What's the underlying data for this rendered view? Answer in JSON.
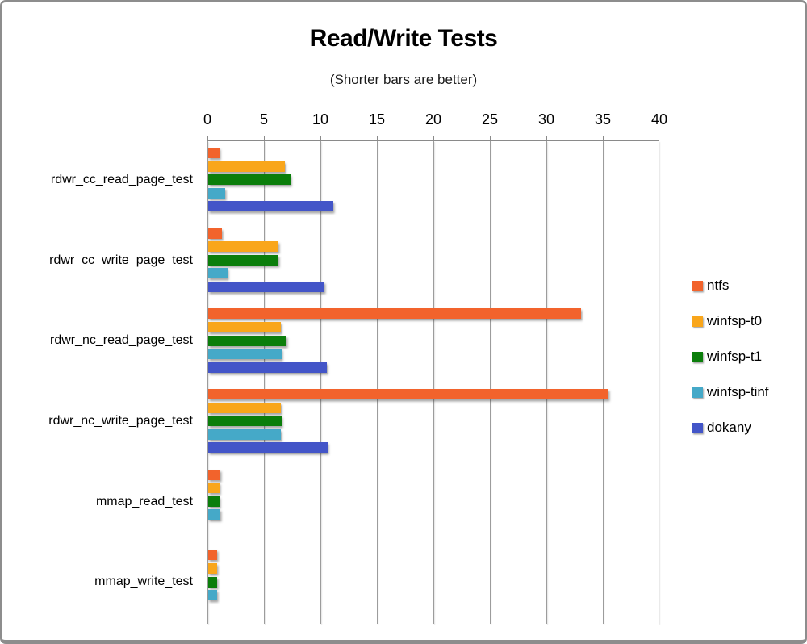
{
  "chart_data": {
    "type": "bar",
    "orientation": "horizontal",
    "title": "Read/Write Tests",
    "subtitle": "(Shorter bars are better)",
    "categories": [
      "rdwr_cc_read_page_test",
      "rdwr_cc_write_page_test",
      "rdwr_nc_read_page_test",
      "rdwr_nc_write_page_test",
      "mmap_read_test",
      "mmap_write_test"
    ],
    "series": [
      {
        "name": "ntfs",
        "color": "#F2632C",
        "values": [
          1.0,
          1.2,
          33.0,
          35.4,
          1.1,
          0.8
        ]
      },
      {
        "name": "winfsp-t0",
        "color": "#F9A61B",
        "values": [
          6.8,
          6.2,
          6.4,
          6.4,
          1.0,
          0.8
        ]
      },
      {
        "name": "winfsp-t1",
        "color": "#0B7E0B",
        "values": [
          7.3,
          6.2,
          6.9,
          6.5,
          1.0,
          0.8
        ]
      },
      {
        "name": "winfsp-tinf",
        "color": "#45A9C8",
        "values": [
          1.5,
          1.7,
          6.5,
          6.4,
          1.1,
          0.8
        ]
      },
      {
        "name": "dokany",
        "color": "#4355C8",
        "values": [
          11.1,
          10.3,
          10.5,
          10.6,
          0,
          0
        ]
      }
    ],
    "xlim": [
      0,
      40
    ],
    "x_ticks": [
      0,
      5,
      10,
      15,
      20,
      25,
      30,
      35,
      40
    ],
    "grid": true,
    "legend_position": "right",
    "grid_color": "#9C9C9C",
    "axis_text_color": "#000000"
  }
}
